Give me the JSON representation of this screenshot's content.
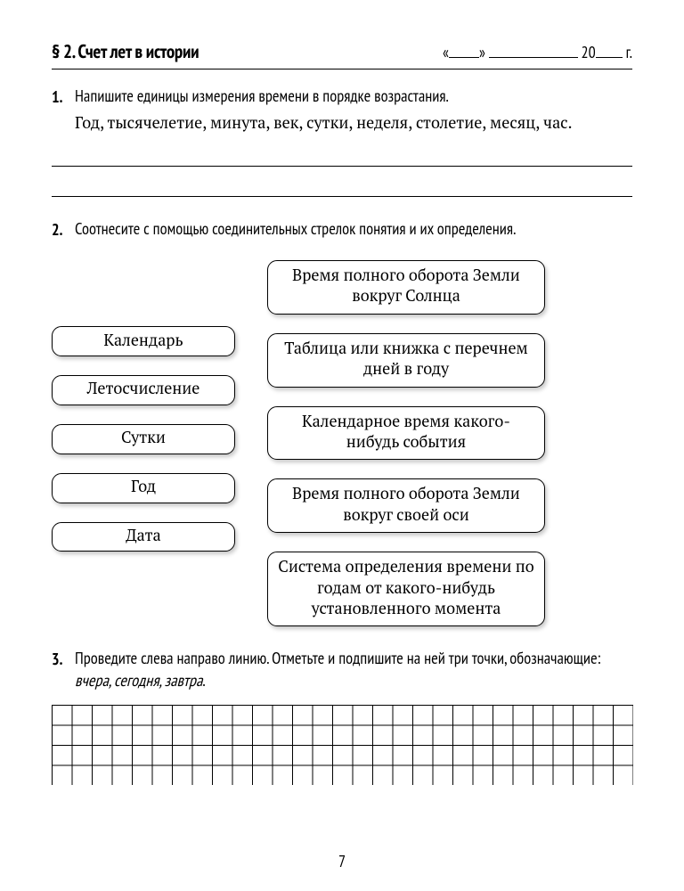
{
  "header": {
    "section_title": "§ 2. Счет лет в истории",
    "date_prefix": "«",
    "date_mid": "»",
    "date_year_prefix": " 20",
    "date_suffix": " г."
  },
  "task1": {
    "num": "1.",
    "prompt": "Напишите единицы измерения времени в порядке возрастания.",
    "items": "Год, тысячелетие, минута, век, сутки, неделя, столетие, месяц, час."
  },
  "task2": {
    "num": "2.",
    "prompt": "Соотнесите с помощью соединительных стрелок понятия и их определения.",
    "left": [
      "Календарь",
      "Летосчисление",
      "Сутки",
      "Год",
      "Дата"
    ],
    "right": [
      "Время полного оборота Земли вокруг Солнца",
      "Таблица или книжка с перечнем дней в году",
      "Календарное время какого-нибудь события",
      "Время полного оборота Земли вокруг своей оси",
      "Система определения времени по годам от какого-нибудь установленного момента"
    ]
  },
  "task3": {
    "num": "3.",
    "prompt_a": "Проведите слева направо линию. Отметьте и подпишите на ней три точки, обозначающие: ",
    "prompt_b": "вчера, сегодня, завтра",
    "prompt_c": ".",
    "grid": {
      "cols": 29,
      "rows": 4,
      "cell": 22.5,
      "stroke": "#000000",
      "stroke_width": 1
    }
  },
  "page_number": "7"
}
